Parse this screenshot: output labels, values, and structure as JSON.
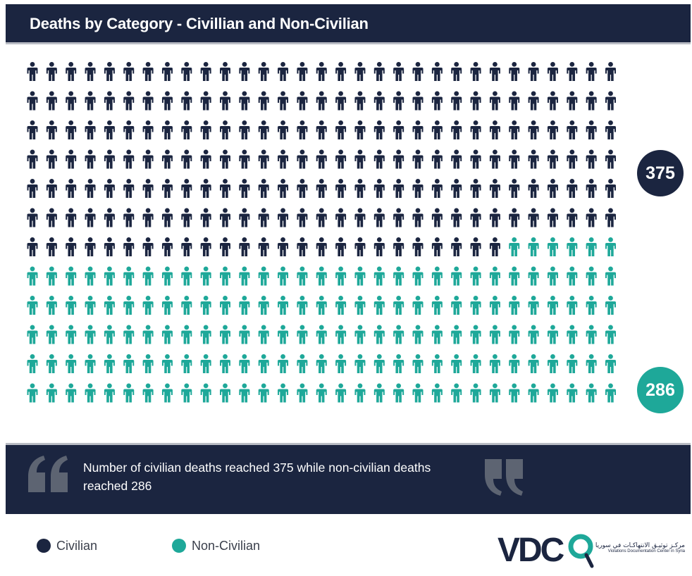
{
  "header": {
    "title": "Deaths by Category - Civillian and Non-Civilian"
  },
  "colors": {
    "navy": "#1b2540",
    "teal": "#1ea899",
    "header_bg": "#1b2540"
  },
  "chart_data": {
    "type": "pictograph",
    "title": "Deaths by Category - Civillian and Non-Civilian",
    "categories": [
      "Civilian",
      "Non-Civilian"
    ],
    "values": [
      375,
      286
    ],
    "colors": [
      "#1b2540",
      "#1ea899"
    ],
    "icon": "person-icon",
    "grid": {
      "columns": 31,
      "rows": 12
    }
  },
  "totals": {
    "civilian": "375",
    "non_civilian": "286"
  },
  "quote": {
    "text": "Number of civilian deaths reached 375 while non-civilian deaths reached 286"
  },
  "legend": [
    {
      "label": "Civilian",
      "color": "#1b2540"
    },
    {
      "label": "Non-Civilian",
      "color": "#1ea899"
    }
  ],
  "logo": {
    "text": "VDC",
    "org_ar": "مركـز توثيـق الانتهاكـات في سوريا",
    "org_en": "Violations Documentation Center in Syria"
  }
}
